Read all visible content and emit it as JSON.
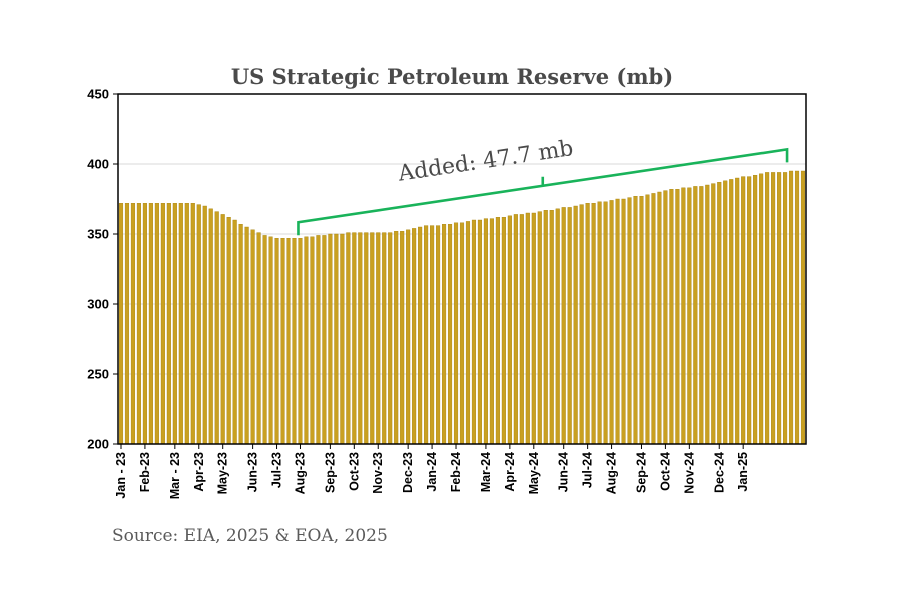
{
  "chart_data": {
    "type": "bar",
    "title": "US Strategic Petroleum Reserve  (mb)",
    "ylim": [
      200,
      450
    ],
    "yticks": [
      200,
      250,
      300,
      350,
      400,
      450
    ],
    "x_tick_labels": [
      "Jan - 23",
      "Feb-23",
      "Mar - 23",
      "Apr-23",
      "May-23",
      "Jun-23",
      "Jul-23",
      "Aug-23",
      "Sep-23",
      "Oct-23",
      "Nov-23",
      "Dec-23",
      "Jan-24",
      "Feb-24",
      "Mar-24",
      "Apr-24",
      "May-24",
      "Jun-24",
      "Jul-24",
      "Aug-24",
      "Sep-24",
      "Oct-24",
      "Nov-24",
      "Dec-24",
      "Jan-25"
    ],
    "weeks_per_tick": 4.33,
    "values": [
      372,
      372,
      372,
      372,
      372,
      372,
      372,
      372,
      372,
      372,
      372,
      372,
      372,
      371,
      370,
      368,
      366,
      364,
      362,
      360,
      357,
      355,
      353,
      351,
      349,
      348,
      347,
      347,
      347,
      347,
      347,
      348,
      348,
      349,
      349,
      350,
      350,
      350,
      351,
      351,
      351,
      351,
      351,
      351,
      351,
      351,
      352,
      352,
      353,
      354,
      355,
      356,
      356,
      356,
      357,
      357,
      358,
      358,
      359,
      360,
      360,
      361,
      361,
      362,
      362,
      363,
      364,
      364,
      365,
      365,
      366,
      367,
      367,
      368,
      369,
      369,
      370,
      371,
      372,
      372,
      373,
      373,
      374,
      375,
      375,
      376,
      377,
      377,
      378,
      379,
      380,
      381,
      382,
      382,
      383,
      383,
      384,
      384,
      385,
      386,
      387,
      388,
      389,
      390,
      391,
      391,
      392,
      393,
      394,
      394,
      394,
      394,
      395,
      395,
      395
    ],
    "annotation": "Added: 47.7 mb",
    "bracket": {
      "from_index": 30,
      "to_index": 111
    },
    "source": "Source: EIA, 2025 & EOA, 2025",
    "grid": true,
    "colors": {
      "bar": "#c9a021",
      "bracket": "#19b35a"
    }
  }
}
